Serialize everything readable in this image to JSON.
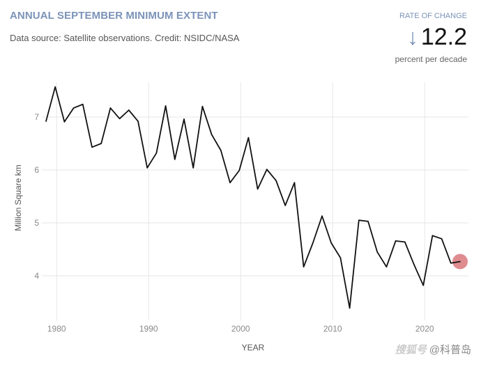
{
  "header": {
    "title": "ANNUAL SEPTEMBER MINIMUM EXTENT",
    "subtitle": "Data source: Satellite observations. Credit: NSIDC/NASA"
  },
  "rate_of_change": {
    "label": "RATE OF CHANGE",
    "icon": "arrow-down-icon",
    "value": "12.2",
    "unit": "percent per decade"
  },
  "watermark": {
    "logo": "搜狐号",
    "handle": "@科普岛"
  },
  "colors": {
    "line": "#111111",
    "highlight": "#d9787c",
    "grid": "#e6e6e6",
    "accent": "#7b93b8"
  },
  "chart_data": {
    "type": "line",
    "title": "ANNUAL SEPTEMBER MINIMUM EXTENT",
    "xlabel": "YEAR",
    "ylabel": "Million Square km",
    "xlim": [
      1979,
      2024
    ],
    "ylim": [
      3.3,
      7.6
    ],
    "xticks": [
      1980,
      1990,
      2000,
      2010,
      2020
    ],
    "yticks": [
      4,
      5,
      6,
      7
    ],
    "grid": true,
    "x": [
      1979,
      1980,
      1981,
      1982,
      1983,
      1984,
      1985,
      1986,
      1987,
      1988,
      1989,
      1990,
      1991,
      1992,
      1993,
      1994,
      1995,
      1996,
      1997,
      1998,
      1999,
      2000,
      2001,
      2002,
      2003,
      2004,
      2005,
      2006,
      2007,
      2008,
      2009,
      2010,
      2011,
      2012,
      2013,
      2014,
      2015,
      2016,
      2017,
      2018,
      2019,
      2020,
      2021,
      2022,
      2023,
      2024
    ],
    "values": [
      6.92,
      7.57,
      6.91,
      7.17,
      7.24,
      6.43,
      6.5,
      7.17,
      6.97,
      7.13,
      6.92,
      6.04,
      6.32,
      7.21,
      6.2,
      6.96,
      6.04,
      7.2,
      6.67,
      6.37,
      5.76,
      5.99,
      6.61,
      5.64,
      6.01,
      5.8,
      5.33,
      5.76,
      4.17,
      4.62,
      5.13,
      4.62,
      4.34,
      3.39,
      5.05,
      5.03,
      4.45,
      4.17,
      4.66,
      4.64,
      4.21,
      3.82,
      4.76,
      4.7,
      4.24,
      4.27
    ],
    "highlight_point": {
      "x": 2024,
      "y": 4.27
    }
  }
}
